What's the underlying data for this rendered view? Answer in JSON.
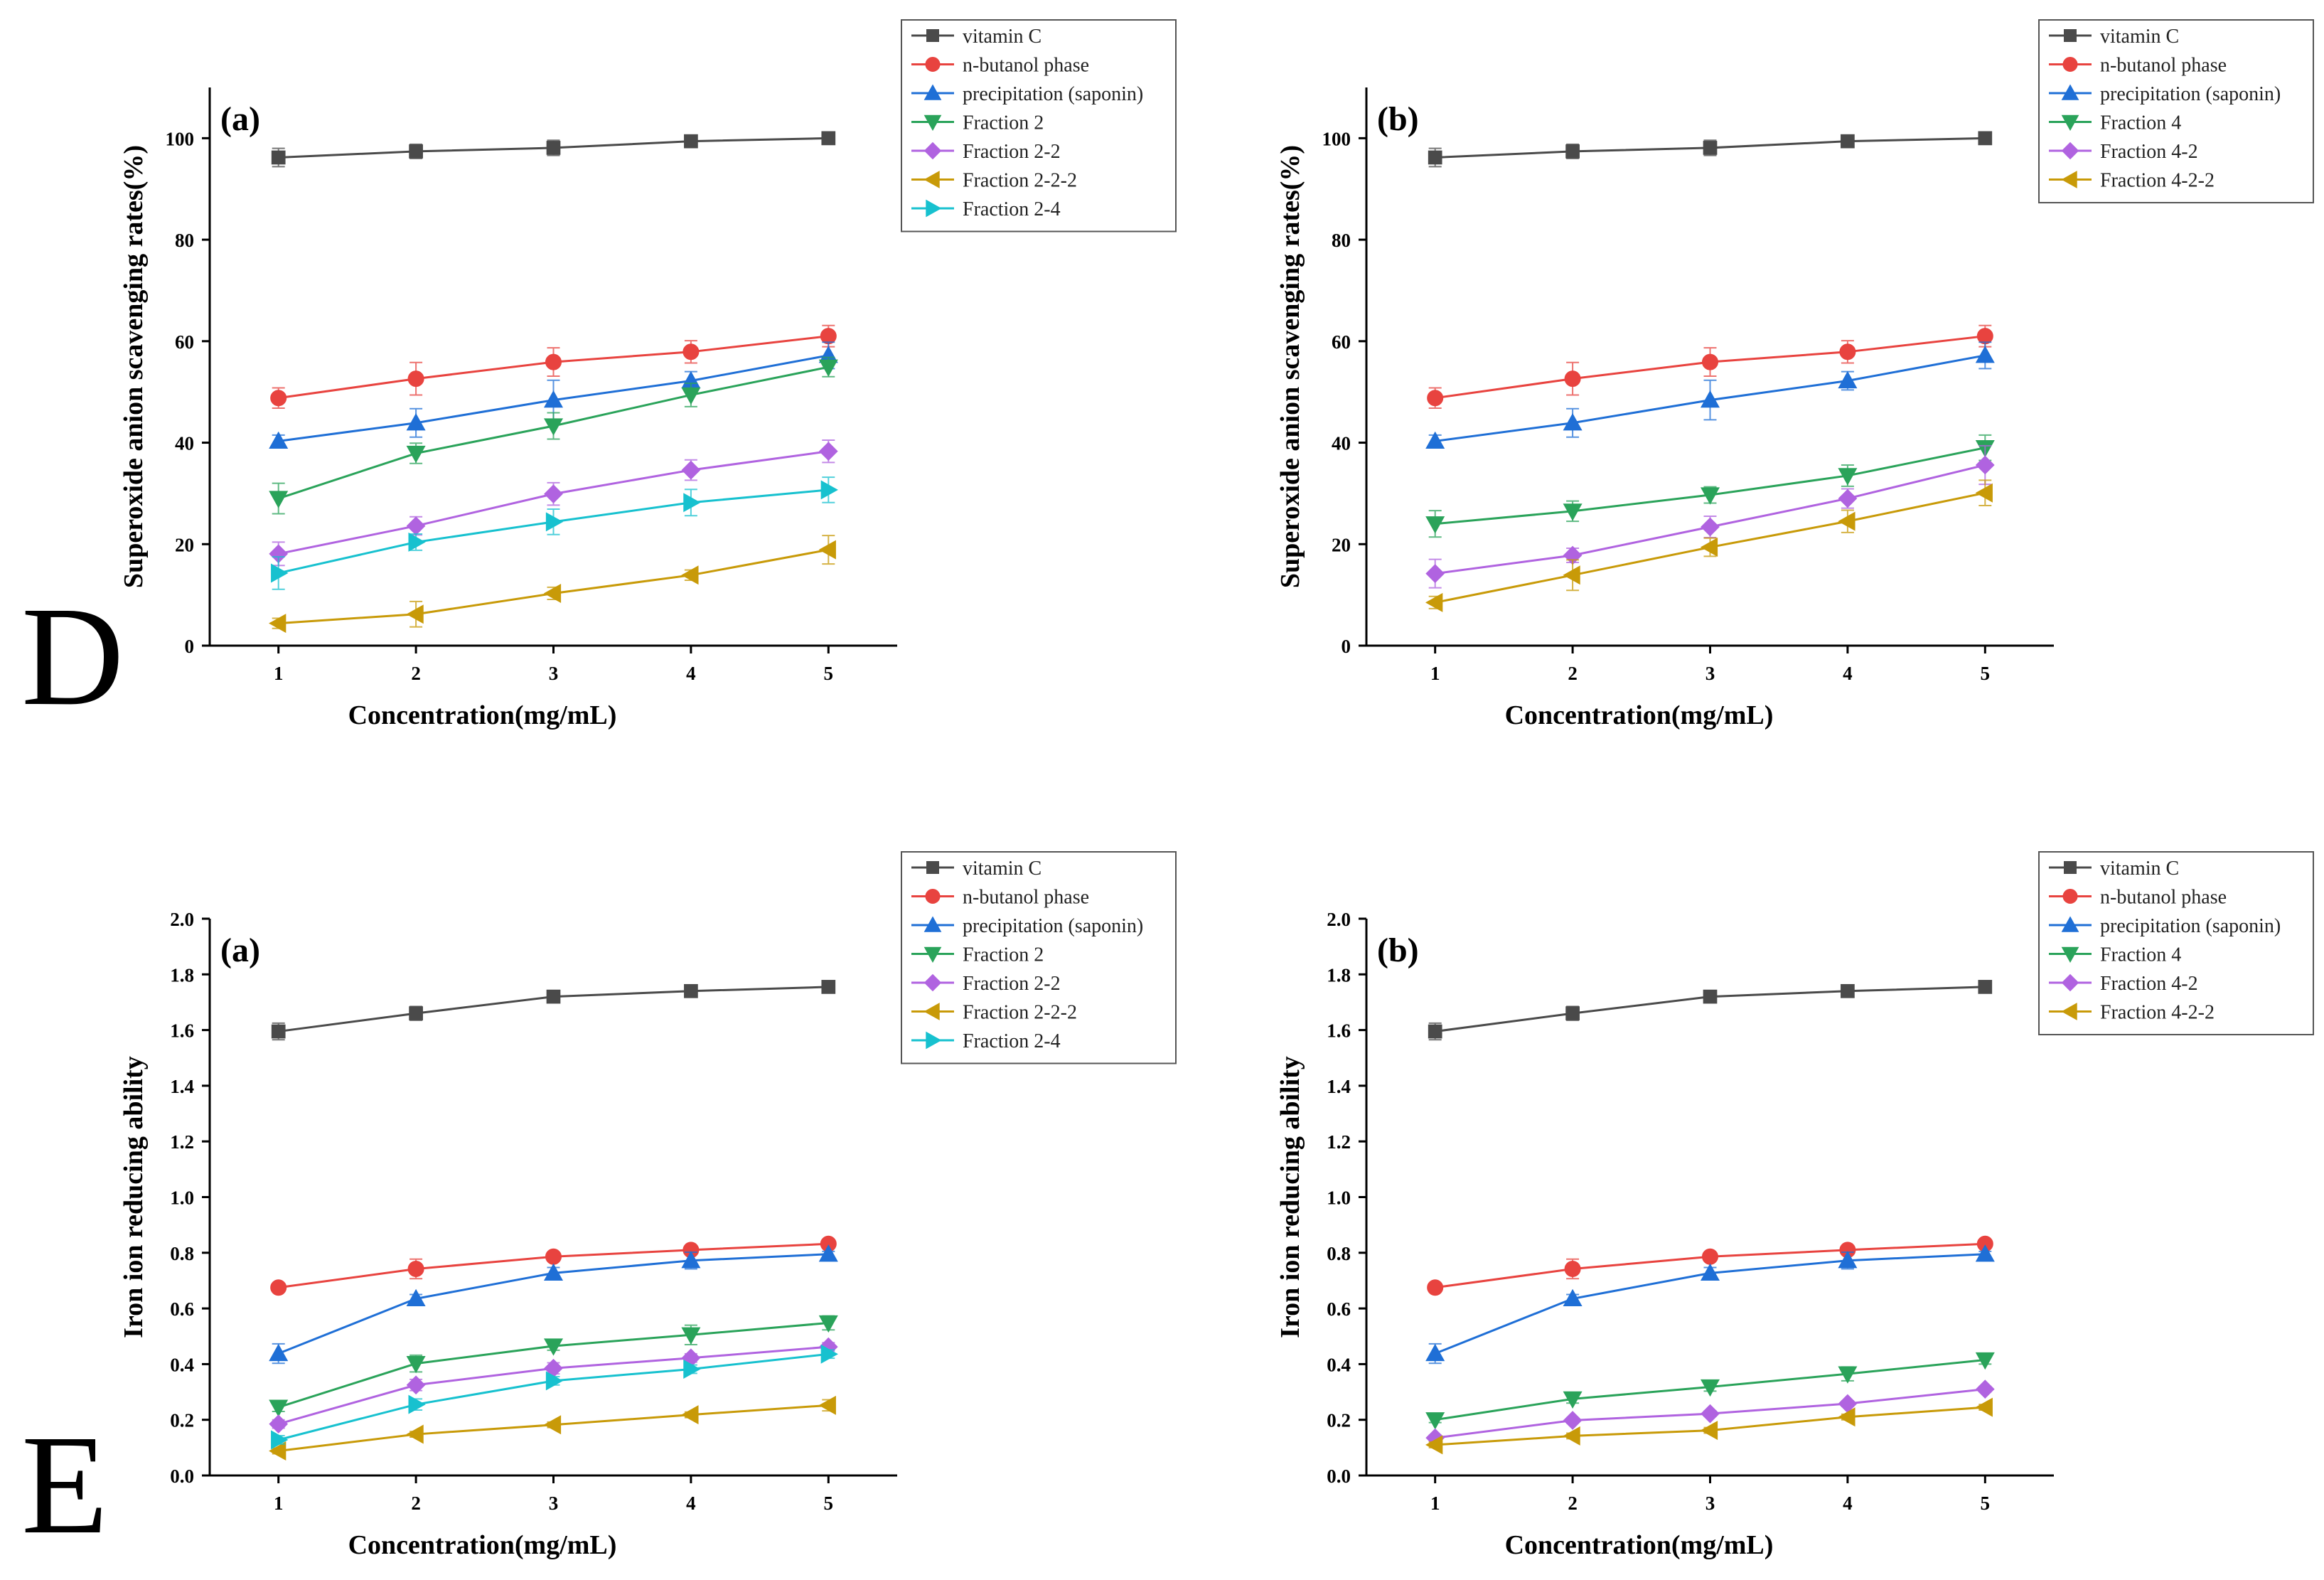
{
  "row_labels": [
    "D",
    "E"
  ],
  "series_styles": {
    "vitamin C": {
      "color": "#4a4a4a",
      "marker": "square"
    },
    "n-butanol phase": {
      "color": "#e8433f",
      "marker": "circle"
    },
    "precipitation (saponin)": {
      "color": "#1f6fd6",
      "marker": "triangle-up"
    },
    "Fraction 2": {
      "color": "#2aa35a",
      "marker": "triangle-down"
    },
    "Fraction 4": {
      "color": "#2aa35a",
      "marker": "triangle-down"
    },
    "Fraction 2-2": {
      "color": "#b063e0",
      "marker": "diamond"
    },
    "Fraction 4-2": {
      "color": "#b063e0",
      "marker": "diamond"
    },
    "Fraction 2-2-2": {
      "color": "#c89a08",
      "marker": "triangle-left"
    },
    "Fraction 4-2-2": {
      "color": "#c89a08",
      "marker": "triangle-left"
    },
    "Fraction 2-4": {
      "color": "#17c1cf",
      "marker": "triangle-right"
    }
  },
  "chart_data": [
    {
      "type": "line",
      "row": "D",
      "panel_label": "(a)",
      "xlabel": "Concentration(mg/mL)",
      "ylabel": "Superoxide anion scavenging rates(%)",
      "x": [
        1,
        2,
        3,
        4,
        5
      ],
      "xlim": [
        0.5,
        5.5
      ],
      "ylim": [
        0,
        110
      ],
      "yticks": [
        0,
        20,
        40,
        60,
        80,
        100
      ],
      "ytick_labels": [
        "0",
        "20",
        "40",
        "60",
        "80",
        "100"
      ],
      "legend_position": "top-right",
      "series": [
        {
          "name": "vitamin C",
          "values": [
            96.2,
            97.4,
            98.1,
            99.4,
            100.0
          ],
          "errors": [
            1.8,
            1.4,
            1.5,
            0.6,
            0.5
          ]
        },
        {
          "name": "n-butanol phase",
          "values": [
            48.8,
            52.6,
            55.9,
            57.9,
            61.0
          ],
          "errors": [
            2.0,
            3.2,
            2.8,
            2.2,
            2.1
          ]
        },
        {
          "name": "precipitation (saponin)",
          "values": [
            40.3,
            43.9,
            48.4,
            52.2,
            57.2
          ],
          "errors": [
            1.2,
            2.8,
            3.9,
            1.8,
            2.6
          ]
        },
        {
          "name": "Fraction 2",
          "values": [
            29.0,
            37.9,
            43.3,
            49.4,
            54.9
          ],
          "errors": [
            3.0,
            2.0,
            2.6,
            2.3,
            1.9
          ]
        },
        {
          "name": "Fraction 2-2",
          "values": [
            18.1,
            23.6,
            29.9,
            34.6,
            38.3
          ],
          "errors": [
            2.3,
            1.8,
            2.2,
            2.0,
            2.2
          ]
        },
        {
          "name": "Fraction 2-2-2",
          "values": [
            4.4,
            6.2,
            10.3,
            13.9,
            18.9
          ],
          "errors": [
            1.0,
            2.5,
            1.2,
            1.0,
            2.8
          ]
        },
        {
          "name": "Fraction 2-4",
          "values": [
            14.3,
            20.4,
            24.4,
            28.2,
            30.7
          ],
          "errors": [
            3.2,
            1.6,
            2.5,
            2.6,
            2.5
          ]
        }
      ]
    },
    {
      "type": "line",
      "row": "D",
      "panel_label": "(b)",
      "xlabel": "Concentration(mg/mL)",
      "ylabel": "Superoxide anion scavenging rates(%)",
      "x": [
        1,
        2,
        3,
        4,
        5
      ],
      "xlim": [
        0.5,
        5.5
      ],
      "ylim": [
        0,
        110
      ],
      "yticks": [
        0,
        20,
        40,
        60,
        80,
        100
      ],
      "ytick_labels": [
        "0",
        "20",
        "40",
        "60",
        "80",
        "100"
      ],
      "legend_position": "top-right",
      "series": [
        {
          "name": "vitamin C",
          "values": [
            96.2,
            97.4,
            98.1,
            99.4,
            100.0
          ],
          "errors": [
            1.8,
            1.4,
            1.5,
            0.6,
            0.5
          ]
        },
        {
          "name": "n-butanol phase",
          "values": [
            48.8,
            52.6,
            55.9,
            57.9,
            61.0
          ],
          "errors": [
            2.0,
            3.2,
            2.8,
            2.2,
            2.1
          ]
        },
        {
          "name": "precipitation (saponin)",
          "values": [
            40.3,
            43.9,
            48.4,
            52.2,
            57.2
          ],
          "errors": [
            1.2,
            2.8,
            3.9,
            1.8,
            2.6
          ]
        },
        {
          "name": "Fraction 4",
          "values": [
            24.0,
            26.5,
            29.7,
            33.5,
            39.0
          ],
          "errors": [
            2.6,
            2.0,
            1.6,
            2.1,
            2.5
          ]
        },
        {
          "name": "Fraction 4-2",
          "values": [
            14.2,
            17.8,
            23.4,
            29.0,
            35.6
          ],
          "errors": [
            2.8,
            1.4,
            2.1,
            1.9,
            3.8
          ]
        },
        {
          "name": "Fraction 4-2-2",
          "values": [
            8.5,
            13.9,
            19.4,
            24.5,
            30.1
          ],
          "errors": [
            1.2,
            3.0,
            1.8,
            2.2,
            2.5
          ]
        }
      ]
    },
    {
      "type": "line",
      "row": "E",
      "panel_label": "(a)",
      "xlabel": "Concentration(mg/mL)",
      "ylabel": "Iron ion reducing ability",
      "x": [
        1,
        2,
        3,
        4,
        5
      ],
      "xlim": [
        0.5,
        5.5
      ],
      "ylim": [
        0,
        2.0
      ],
      "yticks": [
        0,
        0.2,
        0.4,
        0.6,
        0.8,
        1.0,
        1.2,
        1.4,
        1.6,
        1.8,
        2.0
      ],
      "ytick_labels": [
        "0.0",
        "0.2",
        "0.4",
        "0.6",
        "0.8",
        "1.0",
        "1.2",
        "1.4",
        "1.6",
        "1.8",
        "2.0"
      ],
      "legend_position": "top-right",
      "series": [
        {
          "name": "vitamin C",
          "values": [
            1.595,
            1.66,
            1.72,
            1.74,
            1.755
          ],
          "errors": [
            0.03,
            0.025,
            0.015,
            0.01,
            0.01
          ]
        },
        {
          "name": "n-butanol phase",
          "values": [
            0.675,
            0.742,
            0.786,
            0.81,
            0.832
          ],
          "errors": [
            0.015,
            0.035,
            0.015,
            0.015,
            0.01
          ]
        },
        {
          "name": "precipitation (saponin)",
          "values": [
            0.438,
            0.635,
            0.727,
            0.772,
            0.795
          ],
          "errors": [
            0.035,
            0.015,
            0.02,
            0.03,
            0.01
          ]
        },
        {
          "name": "Fraction 2",
          "values": [
            0.245,
            0.402,
            0.465,
            0.505,
            0.548
          ],
          "errors": [
            0.015,
            0.03,
            0.015,
            0.035,
            0.025
          ]
        },
        {
          "name": "Fraction 2-2",
          "values": [
            0.185,
            0.325,
            0.385,
            0.422,
            0.462
          ],
          "errors": [
            0.015,
            0.02,
            0.02,
            0.015,
            0.015
          ]
        },
        {
          "name": "Fraction 2-2-2",
          "values": [
            0.088,
            0.148,
            0.182,
            0.218,
            0.252
          ],
          "errors": [
            0.01,
            0.01,
            0.01,
            0.01,
            0.02
          ]
        },
        {
          "name": "Fraction 2-4",
          "values": [
            0.128,
            0.255,
            0.34,
            0.382,
            0.436
          ],
          "errors": [
            0.015,
            0.02,
            0.015,
            0.015,
            0.015
          ]
        }
      ]
    },
    {
      "type": "line",
      "row": "E",
      "panel_label": "(b)",
      "xlabel": "Concentration(mg/mL)",
      "ylabel": "Iron ion reducing ability",
      "x": [
        1,
        2,
        3,
        4,
        5
      ],
      "xlim": [
        0.5,
        5.5
      ],
      "ylim": [
        0,
        2.0
      ],
      "yticks": [
        0,
        0.2,
        0.4,
        0.6,
        0.8,
        1.0,
        1.2,
        1.4,
        1.6,
        1.8,
        2.0
      ],
      "ytick_labels": [
        "0.0",
        "0.2",
        "0.4",
        "0.6",
        "0.8",
        "1.0",
        "1.2",
        "1.4",
        "1.6",
        "1.8",
        "2.0"
      ],
      "legend_position": "top-right",
      "series": [
        {
          "name": "vitamin C",
          "values": [
            1.595,
            1.66,
            1.72,
            1.74,
            1.755
          ],
          "errors": [
            0.03,
            0.025,
            0.015,
            0.01,
            0.01
          ]
        },
        {
          "name": "n-butanol phase",
          "values": [
            0.675,
            0.742,
            0.786,
            0.81,
            0.832
          ],
          "errors": [
            0.015,
            0.035,
            0.015,
            0.015,
            0.01
          ]
        },
        {
          "name": "precipitation (saponin)",
          "values": [
            0.438,
            0.635,
            0.727,
            0.772,
            0.795
          ],
          "errors": [
            0.035,
            0.015,
            0.02,
            0.03,
            0.01
          ]
        },
        {
          "name": "Fraction 4",
          "values": [
            0.2,
            0.275,
            0.318,
            0.365,
            0.415
          ],
          "errors": [
            0.01,
            0.015,
            0.015,
            0.025,
            0.015
          ]
        },
        {
          "name": "Fraction 4-2",
          "values": [
            0.135,
            0.198,
            0.222,
            0.258,
            0.31
          ],
          "errors": [
            0.01,
            0.01,
            0.01,
            0.01,
            0.01
          ]
        },
        {
          "name": "Fraction 4-2-2",
          "values": [
            0.11,
            0.142,
            0.162,
            0.21,
            0.245
          ],
          "errors": [
            0.01,
            0.01,
            0.01,
            0.01,
            0.01
          ]
        }
      ]
    }
  ]
}
